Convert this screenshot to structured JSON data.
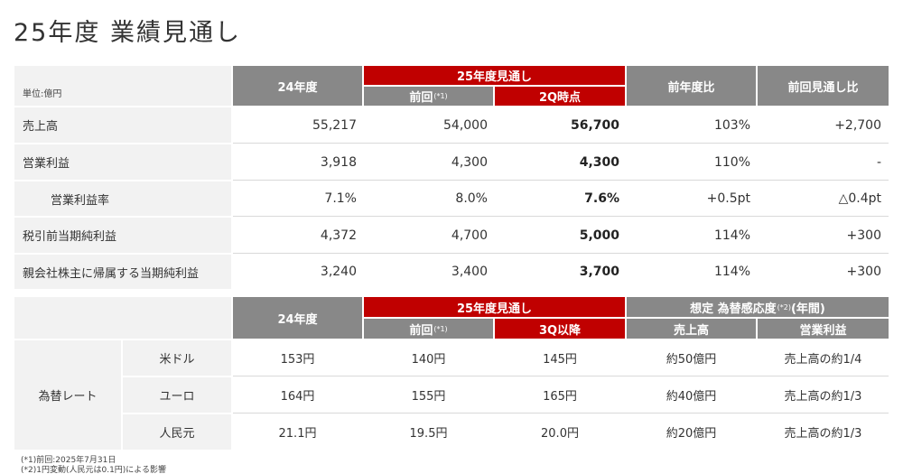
{
  "title": "25年度 業績見通し",
  "table1": {
    "unit": "単位:億円",
    "col_prev_year": "24年度",
    "col_forecast_group": "25年度見通し",
    "col_prev_forecast": "前回",
    "col_prev_forecast_note": "(*1)",
    "col_current": "2Q時点",
    "col_yoy": "前年度比",
    "col_vs_prev": "前回見通し比",
    "rows": [
      {
        "label": "売上高",
        "y24": "55,217",
        "prev": "54,000",
        "current": "56,700",
        "yoy": "103%",
        "diff": "+2,700"
      },
      {
        "label": "営業利益",
        "y24": "3,918",
        "prev": "4,300",
        "current": "4,300",
        "yoy": "110%",
        "diff": "-"
      },
      {
        "label": "営業利益率",
        "y24": "7.1%",
        "prev": "8.0%",
        "current": "7.6%",
        "yoy": "+0.5pt",
        "diff": "△0.4pt"
      },
      {
        "label": "税引前当期純利益",
        "y24": "4,372",
        "prev": "4,700",
        "current": "5,000",
        "yoy": "114%",
        "diff": "+300"
      },
      {
        "label": "親会社株主に帰属する当期純利益",
        "y24": "3,240",
        "prev": "3,400",
        "current": "3,700",
        "yoy": "114%",
        "diff": "+300"
      }
    ]
  },
  "table2": {
    "col_prev_year": "24年度",
    "col_forecast_group": "25年度見通し",
    "col_prev_forecast": "前回",
    "col_prev_forecast_note": "(*1)",
    "col_current": "3Q以降",
    "col_sens_group": "想定 為替感応度",
    "col_sens_note": "(*2)",
    "col_sens_period": "(年間)",
    "col_sales": "売上高",
    "col_op": "営業利益",
    "group_label": "為替レート",
    "rows": [
      {
        "label": "米ドル",
        "y24": "153円",
        "prev": "140円",
        "current": "145円",
        "sales": "約50億円",
        "op": "売上高の約1/4"
      },
      {
        "label": "ユーロ",
        "y24": "164円",
        "prev": "155円",
        "current": "165円",
        "sales": "約40億円",
        "op": "売上高の約1/3"
      },
      {
        "label": "人民元",
        "y24": "21.1円",
        "prev": "19.5円",
        "current": "20.0円",
        "sales": "約20億円",
        "op": "売上高の約1/3"
      }
    ]
  },
  "footnotes": [
    "(*1)前回:2025年7月31日",
    "(*2)1円変動(人民元は0.1円)による影響"
  ]
}
